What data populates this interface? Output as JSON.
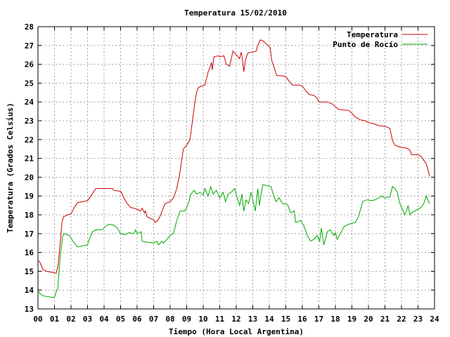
{
  "chart_data": {
    "type": "line",
    "title": "Temperatura 15/02/2010",
    "xlabel": "Tiempo (Hora Local Argentina)",
    "ylabel": "Temperatura (Grados Celsius)",
    "xlim": [
      0,
      24
    ],
    "ylim": [
      13,
      28
    ],
    "x_ticks": [
      "00",
      "01",
      "02",
      "03",
      "04",
      "05",
      "06",
      "07",
      "08",
      "09",
      "10",
      "11",
      "12",
      "13",
      "14",
      "15",
      "16",
      "17",
      "18",
      "19",
      "20",
      "21",
      "22",
      "23",
      "24"
    ],
    "y_ticks": [
      13,
      14,
      15,
      16,
      17,
      18,
      19,
      20,
      21,
      22,
      23,
      24,
      25,
      26,
      27,
      28
    ],
    "grid": true,
    "legend_position": "top-right",
    "colors": {
      "Temperatura": "#cc0000",
      "Punto de Rocío": "#00aa00"
    },
    "series": [
      {
        "name": "Temperatura",
        "color": "#cc0000",
        "points": [
          [
            0.0,
            15.6
          ],
          [
            0.1,
            15.5
          ],
          [
            0.3,
            15.1
          ],
          [
            0.5,
            15.0
          ],
          [
            0.8,
            14.95
          ],
          [
            1.1,
            14.9
          ],
          [
            1.2,
            15.2
          ],
          [
            1.35,
            16.5
          ],
          [
            1.45,
            17.6
          ],
          [
            1.55,
            17.9
          ],
          [
            1.8,
            18.0
          ],
          [
            2.0,
            18.05
          ],
          [
            2.2,
            18.4
          ],
          [
            2.4,
            18.65
          ],
          [
            2.7,
            18.7
          ],
          [
            3.0,
            18.75
          ],
          [
            3.2,
            19.0
          ],
          [
            3.5,
            19.4
          ],
          [
            4.0,
            19.4
          ],
          [
            4.5,
            19.4
          ],
          [
            4.6,
            19.3
          ],
          [
            5.0,
            19.25
          ],
          [
            5.2,
            18.9
          ],
          [
            5.4,
            18.6
          ],
          [
            5.6,
            18.4
          ],
          [
            6.0,
            18.3
          ],
          [
            6.2,
            18.2
          ],
          [
            6.3,
            18.35
          ],
          [
            6.45,
            18.1
          ],
          [
            6.5,
            18.2
          ],
          [
            6.6,
            17.9
          ],
          [
            6.8,
            17.8
          ],
          [
            7.0,
            17.75
          ],
          [
            7.1,
            17.6
          ],
          [
            7.25,
            17.7
          ],
          [
            7.4,
            17.95
          ],
          [
            7.6,
            18.4
          ],
          [
            7.7,
            18.6
          ],
          [
            8.0,
            18.7
          ],
          [
            8.2,
            18.9
          ],
          [
            8.4,
            19.4
          ],
          [
            8.6,
            20.3
          ],
          [
            8.8,
            21.5
          ],
          [
            9.0,
            21.7
          ],
          [
            9.2,
            22.0
          ],
          [
            9.35,
            23.0
          ],
          [
            9.5,
            24.0
          ],
          [
            9.6,
            24.5
          ],
          [
            9.7,
            24.75
          ],
          [
            9.9,
            24.85
          ],
          [
            10.1,
            24.9
          ],
          [
            10.3,
            25.6
          ],
          [
            10.4,
            25.8
          ],
          [
            10.5,
            26.1
          ],
          [
            10.55,
            25.7
          ],
          [
            10.65,
            26.4
          ],
          [
            10.9,
            26.45
          ],
          [
            11.0,
            26.4
          ],
          [
            11.25,
            26.45
          ],
          [
            11.4,
            26.0
          ],
          [
            11.6,
            25.9
          ],
          [
            11.8,
            26.7
          ],
          [
            12.0,
            26.5
          ],
          [
            12.2,
            26.3
          ],
          [
            12.3,
            26.65
          ],
          [
            12.4,
            26.1
          ],
          [
            12.45,
            25.6
          ],
          [
            12.55,
            26.2
          ],
          [
            12.7,
            26.6
          ],
          [
            13.0,
            26.65
          ],
          [
            13.2,
            26.7
          ],
          [
            13.3,
            27.0
          ],
          [
            13.45,
            27.3
          ],
          [
            13.6,
            27.25
          ],
          [
            13.8,
            27.1
          ],
          [
            14.05,
            26.9
          ],
          [
            14.15,
            26.2
          ],
          [
            14.3,
            25.8
          ],
          [
            14.45,
            25.4
          ],
          [
            14.7,
            25.4
          ],
          [
            15.0,
            25.35
          ],
          [
            15.2,
            25.1
          ],
          [
            15.4,
            24.9
          ],
          [
            15.8,
            24.9
          ],
          [
            16.0,
            24.85
          ],
          [
            16.2,
            24.6
          ],
          [
            16.4,
            24.4
          ],
          [
            16.7,
            24.35
          ],
          [
            16.9,
            24.2
          ],
          [
            17.0,
            24.0
          ],
          [
            17.5,
            24.0
          ],
          [
            17.8,
            23.9
          ],
          [
            18.0,
            23.75
          ],
          [
            18.2,
            23.6
          ],
          [
            18.8,
            23.55
          ],
          [
            19.0,
            23.4
          ],
          [
            19.2,
            23.2
          ],
          [
            19.5,
            23.05
          ],
          [
            19.8,
            23.0
          ],
          [
            20.0,
            22.9
          ],
          [
            20.3,
            22.85
          ],
          [
            20.6,
            22.75
          ],
          [
            21.0,
            22.7
          ],
          [
            21.3,
            22.6
          ],
          [
            21.45,
            21.95
          ],
          [
            21.6,
            21.7
          ],
          [
            21.9,
            21.6
          ],
          [
            22.3,
            21.55
          ],
          [
            22.5,
            21.45
          ],
          [
            22.6,
            21.2
          ],
          [
            23.0,
            21.2
          ],
          [
            23.2,
            21.1
          ],
          [
            23.35,
            20.9
          ],
          [
            23.5,
            20.7
          ],
          [
            23.6,
            20.4
          ],
          [
            23.7,
            20.05
          ]
        ]
      },
      {
        "name": "Punto de Rocío",
        "color": "#00aa00",
        "points": [
          [
            0.0,
            13.95
          ],
          [
            0.15,
            13.8
          ],
          [
            0.3,
            13.7
          ],
          [
            0.6,
            13.65
          ],
          [
            1.0,
            13.6
          ],
          [
            1.1,
            13.9
          ],
          [
            1.2,
            14.1
          ],
          [
            1.35,
            15.8
          ],
          [
            1.5,
            16.9
          ],
          [
            1.6,
            17.0
          ],
          [
            1.9,
            16.9
          ],
          [
            2.2,
            16.5
          ],
          [
            2.4,
            16.3
          ],
          [
            2.7,
            16.35
          ],
          [
            3.0,
            16.4
          ],
          [
            3.1,
            16.7
          ],
          [
            3.3,
            17.1
          ],
          [
            3.5,
            17.2
          ],
          [
            3.9,
            17.2
          ],
          [
            4.1,
            17.4
          ],
          [
            4.3,
            17.5
          ],
          [
            4.6,
            17.45
          ],
          [
            4.8,
            17.3
          ],
          [
            5.0,
            17.0
          ],
          [
            5.3,
            16.95
          ],
          [
            5.5,
            17.05
          ],
          [
            5.8,
            17.0
          ],
          [
            5.9,
            17.2
          ],
          [
            6.0,
            17.0
          ],
          [
            6.25,
            17.1
          ],
          [
            6.3,
            16.6
          ],
          [
            6.6,
            16.55
          ],
          [
            7.0,
            16.5
          ],
          [
            7.2,
            16.6
          ],
          [
            7.3,
            16.4
          ],
          [
            7.5,
            16.6
          ],
          [
            7.6,
            16.5
          ],
          [
            7.8,
            16.7
          ],
          [
            8.0,
            16.9
          ],
          [
            8.2,
            17.0
          ],
          [
            8.4,
            17.7
          ],
          [
            8.6,
            18.2
          ],
          [
            8.9,
            18.2
          ],
          [
            9.1,
            18.6
          ],
          [
            9.25,
            19.1
          ],
          [
            9.45,
            19.3
          ],
          [
            9.6,
            19.1
          ],
          [
            9.8,
            19.2
          ],
          [
            10.0,
            19.05
          ],
          [
            10.1,
            19.4
          ],
          [
            10.3,
            19.0
          ],
          [
            10.45,
            19.5
          ],
          [
            10.6,
            19.1
          ],
          [
            10.8,
            19.3
          ],
          [
            11.0,
            18.9
          ],
          [
            11.2,
            19.2
          ],
          [
            11.35,
            18.7
          ],
          [
            11.5,
            19.1
          ],
          [
            11.7,
            19.2
          ],
          [
            11.9,
            19.4
          ],
          [
            12.1,
            18.8
          ],
          [
            12.2,
            18.5
          ],
          [
            12.35,
            19.1
          ],
          [
            12.45,
            18.2
          ],
          [
            12.6,
            18.8
          ],
          [
            12.75,
            18.6
          ],
          [
            12.9,
            19.2
          ],
          [
            13.05,
            18.6
          ],
          [
            13.15,
            18.2
          ],
          [
            13.3,
            19.4
          ],
          [
            13.4,
            18.5
          ],
          [
            13.6,
            19.6
          ],
          [
            13.9,
            19.55
          ],
          [
            14.1,
            19.5
          ],
          [
            14.2,
            19.2
          ],
          [
            14.4,
            18.7
          ],
          [
            14.6,
            18.9
          ],
          [
            14.8,
            18.6
          ],
          [
            15.1,
            18.55
          ],
          [
            15.3,
            18.1
          ],
          [
            15.5,
            18.2
          ],
          [
            15.6,
            17.6
          ],
          [
            15.9,
            17.7
          ],
          [
            16.1,
            17.4
          ],
          [
            16.3,
            16.9
          ],
          [
            16.5,
            16.6
          ],
          [
            16.7,
            16.7
          ],
          [
            16.9,
            16.9
          ],
          [
            17.05,
            16.6
          ],
          [
            17.15,
            17.3
          ],
          [
            17.3,
            16.4
          ],
          [
            17.5,
            17.1
          ],
          [
            17.7,
            17.2
          ],
          [
            17.9,
            16.9
          ],
          [
            18.0,
            17.05
          ],
          [
            18.1,
            16.7
          ],
          [
            18.3,
            17.0
          ],
          [
            18.5,
            17.35
          ],
          [
            18.8,
            17.5
          ],
          [
            19.0,
            17.55
          ],
          [
            19.2,
            17.6
          ],
          [
            19.4,
            17.9
          ],
          [
            19.65,
            18.7
          ],
          [
            19.9,
            18.8
          ],
          [
            20.2,
            18.75
          ],
          [
            20.4,
            18.8
          ],
          [
            20.6,
            18.9
          ],
          [
            20.8,
            19.0
          ],
          [
            21.0,
            18.9
          ],
          [
            21.3,
            18.95
          ],
          [
            21.45,
            19.5
          ],
          [
            21.6,
            19.4
          ],
          [
            21.75,
            19.2
          ],
          [
            21.9,
            18.6
          ],
          [
            22.05,
            18.3
          ],
          [
            22.2,
            18.0
          ],
          [
            22.3,
            18.2
          ],
          [
            22.4,
            18.5
          ],
          [
            22.5,
            18.0
          ],
          [
            22.6,
            18.1
          ],
          [
            22.8,
            18.2
          ],
          [
            23.0,
            18.3
          ],
          [
            23.2,
            18.4
          ],
          [
            23.35,
            18.6
          ],
          [
            23.5,
            19.0
          ],
          [
            23.6,
            18.8
          ],
          [
            23.7,
            18.6
          ]
        ]
      }
    ]
  }
}
